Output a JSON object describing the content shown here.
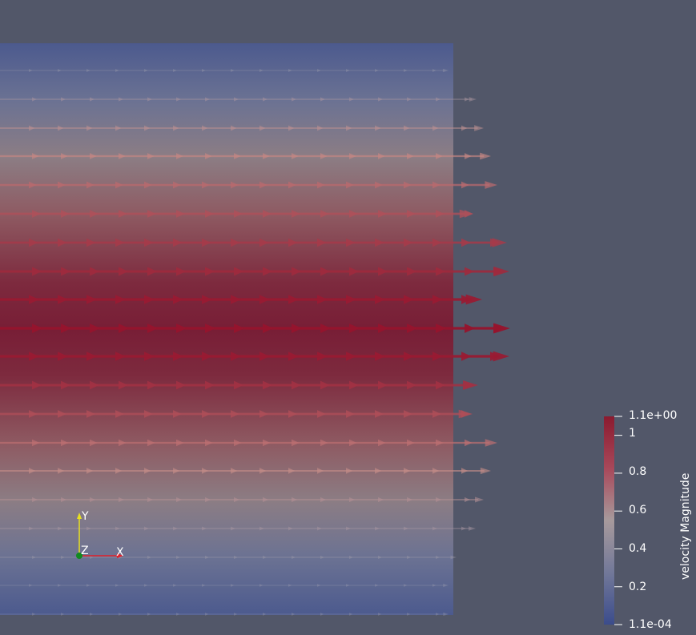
{
  "colorbar": {
    "title": "velocity Magnitude",
    "max_label": "1.1e+00",
    "min_label": "1.1e-04",
    "range": [
      0.00011,
      1.1
    ],
    "ticks": [
      {
        "value": 1.0,
        "label": "1"
      },
      {
        "value": 0.8,
        "label": "0.8"
      },
      {
        "value": 0.6,
        "label": "0.6"
      },
      {
        "value": 0.4,
        "label": "0.4"
      },
      {
        "value": 0.2,
        "label": "0.2"
      }
    ],
    "colormap": [
      "#3b4c8c",
      "#8a8fa5",
      "#c9a6a0",
      "#b3404a",
      "#8b1a2f"
    ]
  },
  "axes": {
    "x_label": "X",
    "y_label": "Y",
    "z_label": "Z",
    "x_color": "#e0202a",
    "y_color": "#e8e020",
    "z_color": "#128a20"
  },
  "colors": {
    "background": "#525769"
  }
}
